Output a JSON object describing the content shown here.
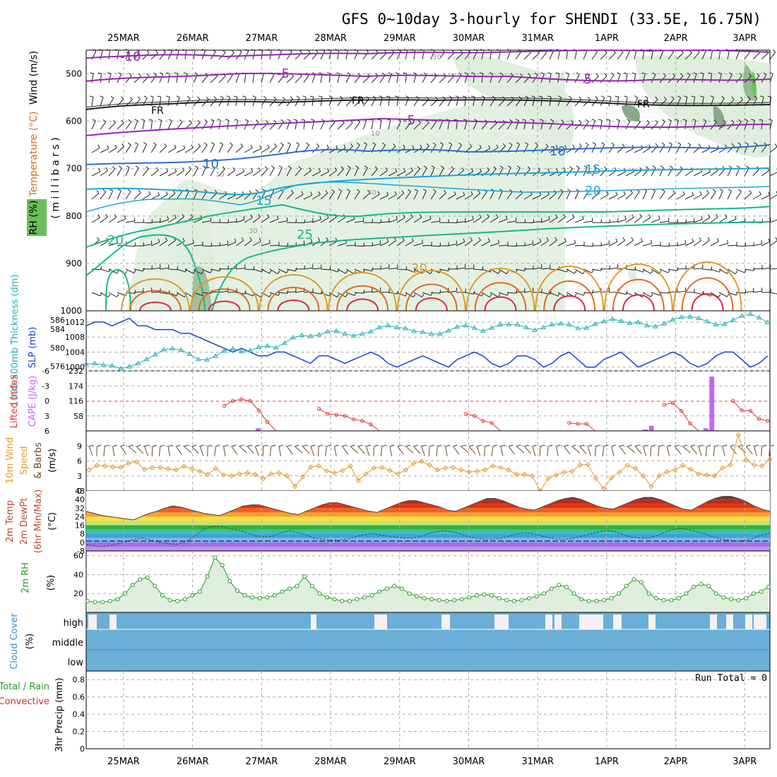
{
  "title": "GFS 0~10day 3-hourly for SHENDI (33.5E, 16.75N)",
  "dates": [
    "25MAR",
    "26MAR",
    "27MAR",
    "28MAR",
    "29MAR",
    "30MAR",
    "31MAR",
    "1APR",
    "2APR",
    "3APR"
  ],
  "colors": {
    "temp_purple": "#9a22b4",
    "temp_blue": "#2a6fd0",
    "temp_cyan": "#1aa6d8",
    "temp_teal": "#16b88e",
    "temp_orange": "#e09a2a",
    "temp_dark_orange": "#e06a20",
    "temp_red": "#dd2a40",
    "rh_fill": "#dfeedd",
    "rh_dark": "#8aa88a",
    "slp": "#1f3fd0",
    "thickness": "#22b2b2",
    "lifted": "#dd3a3a",
    "cape": "#c06af0",
    "wind_speed": "#e49a30",
    "barb": "#6b4a2a",
    "rh2m": "#2a9a2a",
    "cloud": "#6baed6"
  },
  "panels": {
    "upper": {
      "ylabel_rh": "RH (%)",
      "ylabel_temp": "Temperature (°C)",
      "ylabel_wind": "Wind (m/s)",
      "ylabel_mb": "( m i l l i b a r s )",
      "ticks": [
        "500",
        "600",
        "700",
        "800",
        "900",
        "1000"
      ],
      "contour_labels": [
        "-10",
        "-5",
        "-5",
        "-5",
        "FR",
        "FR",
        "FR",
        "10",
        "10",
        "15",
        "15",
        "20",
        "20",
        "25",
        "30",
        "30",
        "30",
        "30",
        "10",
        "10"
      ]
    },
    "pressure": {
      "ylabel_thk": "1000-500mb Thickness (dm)",
      "ylabel_slp": "SLP (mb)",
      "ticks_thk": [
        "586",
        "584",
        "580",
        "576"
      ],
      "ticks_slp": [
        "1012",
        "1008",
        "1004",
        "1000"
      ]
    },
    "instability": {
      "ylabel_li": "Lifted Index",
      "ylabel_cape": "CAPE (J/kg)",
      "ticks_li": [
        "-6",
        "-3",
        "0",
        "3",
        "6"
      ],
      "ticks_cape": [
        "232",
        "174",
        "116",
        "58"
      ]
    },
    "wind10m": {
      "ylabel1": "10m Wind",
      "ylabel2": "Speed",
      "ylabel3": "& Barbs",
      "ylabel_units": "(m/s)",
      "ticks": [
        "9",
        "6",
        "3",
        "0"
      ]
    },
    "temp2m": {
      "ylabel1": "2m Temp",
      "ylabel2": "2m DewPt",
      "ylabel3": "(6hr Min/Max)",
      "ylabel_units": "(°C)",
      "ticks": [
        "48",
        "40",
        "32",
        "24",
        "16",
        "8",
        "0",
        "-8"
      ]
    },
    "rh2m": {
      "ylabel": "2m RH",
      "ylabel_units": "(%)",
      "ticks": [
        "60",
        "40",
        "20"
      ]
    },
    "cloud": {
      "ylabel": "Cloud Cover",
      "ylabel_units": "(%)",
      "levels": [
        "high",
        "middle",
        "low"
      ]
    },
    "precip": {
      "ylabel_total": "Total / Rain",
      "ylabel_conv": "Convective",
      "ylabel_units": "3hr Precip (mm)",
      "ticks": [
        "0.8",
        "0.6",
        "0.4",
        "0.2",
        "0"
      ],
      "run_total": "Run Total = 0"
    }
  },
  "chart_data": {
    "type": "line",
    "x_step_hours": 3,
    "start": "25MAR 00Z",
    "series": [
      {
        "name": "SLP (mb)",
        "values": [
          1011,
          1012,
          1012,
          1011,
          1012,
          1013,
          1011,
          1011,
          1010,
          1010,
          1010,
          1009,
          1009,
          1008,
          1007,
          1006,
          1005,
          1004,
          1005,
          1004,
          1003,
          1003,
          1004,
          1004,
          1003,
          1002,
          1001,
          1003,
          1003,
          1002,
          1001,
          1002,
          1003,
          1004,
          1003,
          1001,
          1000,
          1001,
          1002,
          1003,
          1002,
          1001,
          1000,
          1002,
          1003,
          1004,
          1003,
          1001,
          1000,
          1001,
          1003,
          1003,
          1002,
          1000,
          1001,
          1003,
          1004,
          1002,
          1000,
          1000,
          1002,
          1003,
          1004,
          1002,
          1000,
          1001,
          1002,
          1003,
          1004,
          1003,
          1001,
          1000,
          1001,
          1003,
          1004,
          1004,
          1002,
          1000,
          1001,
          1003,
          1005
        ]
      },
      {
        "name": "1000-500mb Thickness (dm)",
        "values": [
          576.5,
          576.6,
          576.3,
          576.1,
          575.5,
          575.9,
          576.6,
          577.5,
          578.5,
          579.6,
          579.8,
          579.5,
          578.6,
          577.5,
          577.4,
          578.2,
          579.3,
          579.8,
          579.2,
          579.4,
          580.1,
          580.4,
          580.0,
          581.0,
          582.2,
          582.7,
          582.5,
          582.8,
          583.5,
          583.6,
          583.0,
          582.6,
          583.0,
          583.5,
          584.4,
          584.8,
          584.4,
          584.2,
          583.6,
          583.4,
          583.0,
          583.0,
          583.7,
          584.5,
          584.8,
          584.3,
          583.6,
          584.3,
          585.0,
          585.1,
          585.0,
          584.4,
          583.8,
          584.4,
          585.0,
          585.2,
          585.0,
          584.2,
          584.3,
          585.1,
          585.7,
          586.2,
          585.8,
          585.3,
          585.5,
          584.8,
          584.6,
          585.2,
          586.1,
          586.6,
          586.7,
          586.4,
          585.7,
          585.0,
          585.1,
          586.0,
          586.9,
          587.3,
          586.5,
          585.5,
          584.8,
          585.4,
          586.0
        ]
      },
      {
        "name": "Lifted Index",
        "values": [
          6,
          6,
          6,
          6,
          6,
          6,
          6,
          6,
          6,
          6,
          6,
          6,
          6,
          6,
          6,
          6,
          1.0,
          0.0,
          -0.3,
          0.0,
          1.9,
          4.2,
          6,
          6,
          6,
          6,
          6,
          1.6,
          2.6,
          2.8,
          3.0,
          3.7,
          4.0,
          4.7,
          6,
          6,
          6,
          6,
          6,
          6,
          6,
          6,
          6,
          6,
          2.6,
          3.0,
          4.0,
          4.4,
          6,
          6,
          6,
          6,
          6,
          6,
          6,
          6,
          4.4,
          4.6,
          4.6,
          6,
          6,
          6,
          6,
          6,
          6,
          6,
          6,
          0.8,
          0.4,
          2.0,
          4.5,
          6,
          6,
          6,
          6,
          0.0,
          1.9,
          2.0,
          3.6,
          4.0,
          4.3,
          6
        ]
      },
      {
        "name": "CAPE (J/kg)",
        "values": [
          0,
          0,
          0,
          0,
          0,
          0,
          0,
          0,
          0,
          0,
          0,
          0,
          0,
          0,
          0,
          0,
          0,
          0,
          3,
          0,
          0,
          0,
          0,
          0,
          0,
          0,
          0,
          0,
          10,
          0,
          0,
          0,
          0,
          0,
          0,
          0,
          0,
          0,
          0,
          0,
          0,
          0,
          0,
          0,
          0,
          0,
          0,
          0,
          0,
          0,
          0,
          0,
          0,
          0,
          0,
          0,
          0,
          0,
          0,
          0,
          0,
          0,
          0,
          0,
          0,
          0,
          0,
          0,
          0,
          0,
          0,
          0,
          0,
          0,
          0,
          0,
          0,
          0,
          0,
          0,
          0,
          0,
          0,
          0,
          0,
          0,
          0,
          0,
          0,
          0,
          0,
          0,
          6,
          20,
          0,
          0,
          0,
          0,
          0,
          0,
          0,
          0,
          10,
          210,
          2,
          0,
          0,
          0,
          0,
          0,
          0,
          0,
          0
        ]
      },
      {
        "name": "10m Wind Speed (m/s)",
        "values": [
          4.2,
          5.1,
          5.0,
          4.8,
          4.7,
          5.5,
          5.8,
          4.3,
          4.7,
          4.7,
          4.4,
          4.2,
          4.9,
          4.4,
          3.9,
          3.3,
          4.5,
          3.2,
          3.0,
          3.4,
          3.6,
          3.3,
          2.4,
          3.4,
          3.6,
          3.0,
          0.9,
          2.8,
          4.8,
          5.0,
          4.0,
          3.6,
          4.0,
          5.0,
          2.1,
          3.4,
          4.6,
          4.7,
          4.1,
          3.4,
          4.2,
          5.5,
          5.9,
          5.2,
          4.2,
          4.6,
          4.7,
          4.2,
          3.8,
          3.9,
          4.2,
          5.0,
          4.7,
          4.2,
          3.3,
          3.3,
          3.0,
          0.0,
          2.5,
          3.2,
          3.7,
          3.9,
          5.2,
          5.3,
          2.5,
          0.5,
          2.6,
          3.8,
          5.1,
          4.5,
          3.0,
          0.9,
          3.0,
          3.8,
          4.2,
          5.1,
          4.3,
          3.4,
          3.2,
          3.0,
          4.6,
          5.2,
          11.2,
          6.2,
          5.2,
          5.0,
          6.3
        ]
      },
      {
        "name": "2m Temp (°C)",
        "values": [
          29,
          27,
          25,
          24,
          23,
          22,
          21,
          24,
          27,
          29,
          32,
          34,
          33,
          31,
          29,
          27,
          26,
          25,
          28,
          31,
          34,
          35,
          35,
          33,
          31,
          29,
          27,
          26,
          29,
          32,
          35,
          37,
          37,
          35,
          33,
          31,
          29,
          28,
          31,
          34,
          37,
          39,
          39,
          37,
          35,
          33,
          30,
          29,
          32,
          35,
          38,
          41,
          41,
          39,
          36,
          33,
          31,
          30,
          33,
          36,
          39,
          41,
          42,
          40,
          37,
          34,
          32,
          31,
          34,
          37,
          40,
          42,
          42,
          40,
          37,
          34,
          31,
          30,
          34,
          38,
          41,
          43,
          43,
          41,
          38,
          34,
          31,
          29
        ]
      },
      {
        "name": "2m DewPt (°C)",
        "values": [
          -2,
          -3,
          -4,
          -3,
          -1,
          1,
          3,
          4,
          2,
          0,
          -1,
          -2,
          0,
          4,
          10,
          14,
          15,
          14,
          12,
          11,
          8,
          6,
          5,
          6,
          9,
          11,
          9,
          7,
          4,
          3,
          2,
          2,
          3,
          5,
          7,
          8,
          7,
          6,
          5,
          4,
          4,
          5,
          8,
          10,
          11,
          10,
          8,
          5,
          4,
          3,
          3,
          4,
          6,
          8,
          9,
          8,
          6,
          4,
          3,
          3,
          4,
          6,
          8,
          10,
          11,
          10,
          7,
          5,
          4,
          4,
          6,
          9,
          12,
          13,
          12,
          10,
          8,
          5,
          3,
          2,
          1,
          2,
          4,
          7,
          9
        ]
      },
      {
        "name": "2m RH (%)",
        "values": [
          12,
          11,
          11,
          12,
          14,
          20,
          29,
          35,
          37,
          28,
          18,
          13,
          12,
          14,
          18,
          22,
          38,
          58,
          50,
          33,
          23,
          18,
          16,
          15,
          16,
          18,
          22,
          25,
          28,
          38,
          28,
          20,
          16,
          14,
          12,
          12,
          14,
          16,
          18,
          22,
          25,
          28,
          25,
          20,
          17,
          15,
          14,
          13,
          12,
          13,
          14,
          16,
          18,
          19,
          18,
          15,
          13,
          12,
          13,
          15,
          17,
          20,
          25,
          29,
          27,
          20,
          14,
          12,
          12,
          13,
          15,
          20,
          28,
          35,
          32,
          20,
          15,
          13,
          13,
          15,
          20,
          27,
          30,
          28,
          20,
          16,
          14,
          13,
          15,
          20,
          22,
          27
        ]
      }
    ],
    "cloud_high_values": [
      5,
      0,
      5,
      0,
      0,
      0,
      0,
      0,
      0,
      0,
      0,
      0,
      0,
      0,
      0,
      0,
      0,
      0,
      0,
      0,
      0,
      0,
      0,
      0,
      0,
      0,
      0,
      0,
      0,
      0,
      0,
      0,
      0,
      0,
      0,
      0,
      0,
      0,
      0,
      0,
      0,
      0,
      0,
      0,
      0,
      0,
      0,
      0,
      0,
      0,
      0,
      0,
      0,
      0,
      0,
      0,
      0,
      0,
      0,
      0,
      0,
      0,
      0,
      0,
      0,
      0,
      0,
      0,
      0,
      0,
      0,
      0,
      0,
      0,
      0,
      0,
      0,
      0,
      0,
      0,
      0,
      0,
      0,
      0,
      0,
      0,
      0,
      0,
      0,
      0,
      0,
      0,
      0,
      0,
      0,
      0
    ],
    "ylim_slp": [
      999,
      1015
    ],
    "ylim_thickness": [
      575,
      588
    ],
    "ylim_li": [
      -6,
      6
    ],
    "ylim_cape": [
      0,
      232
    ],
    "ylim_wind": [
      0,
      12
    ],
    "ylim_temp": [
      -8,
      48
    ],
    "ylim_rh2m": [
      0,
      65
    ],
    "ylim_precip": [
      0,
      0.9
    ]
  }
}
